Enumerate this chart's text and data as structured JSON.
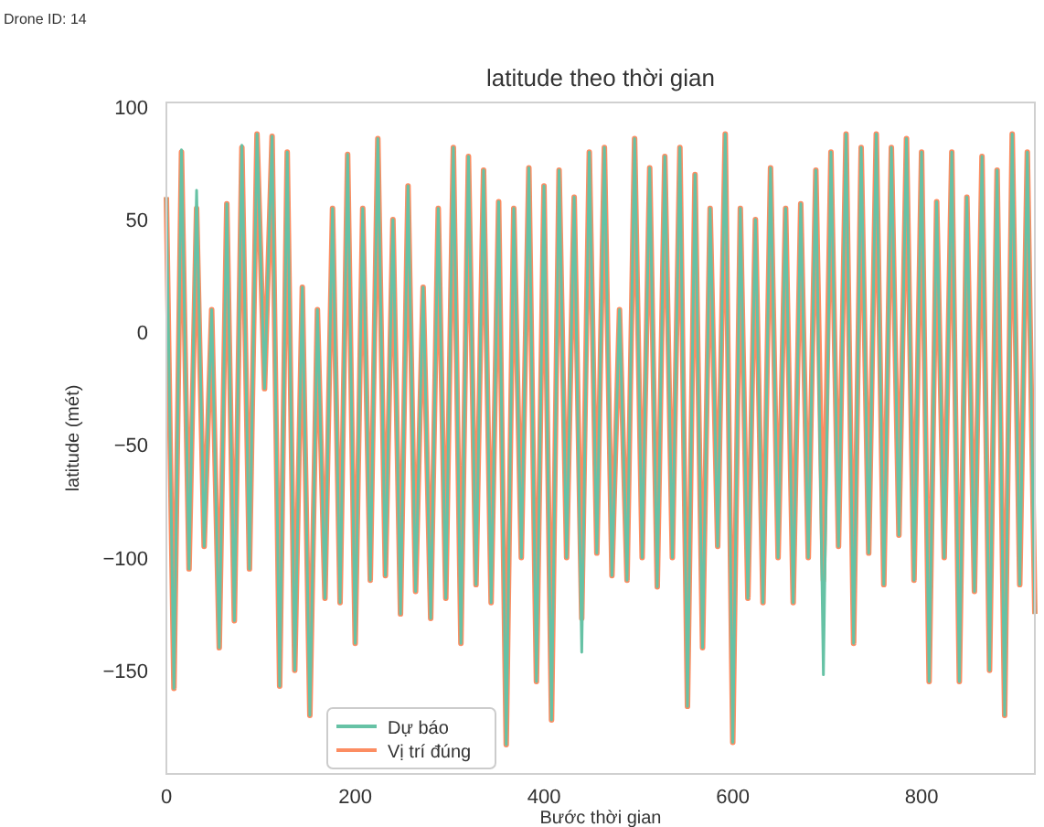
{
  "chart_data": {
    "type": "line",
    "title": "latitude theo thời gian",
    "xlabel": "Bước thời gian",
    "ylabel": "latitude (mét)",
    "annotations": [
      "Drone ID: 14"
    ],
    "x": [
      0,
      8,
      16,
      24,
      32,
      40,
      48,
      56,
      64,
      72,
      80,
      88,
      96,
      104,
      112,
      120,
      128,
      136,
      144,
      152,
      160,
      168,
      176,
      184,
      192,
      200,
      208,
      216,
      224,
      232,
      240,
      248,
      256,
      264,
      272,
      280,
      288,
      296,
      304,
      312,
      320,
      328,
      336,
      344,
      352,
      360,
      368,
      376,
      384,
      392,
      400,
      408,
      416,
      424,
      432,
      440,
      448,
      456,
      464,
      472,
      480,
      488,
      496,
      504,
      512,
      520,
      528,
      536,
      544,
      552,
      560,
      568,
      576,
      584,
      592,
      600,
      608,
      616,
      624,
      632,
      640,
      648,
      656,
      664,
      672,
      680,
      688,
      696,
      704,
      712,
      720,
      728,
      736,
      744,
      752,
      760,
      768,
      776,
      784,
      792,
      800,
      808,
      816,
      824,
      832,
      840,
      848,
      856,
      864,
      872,
      880,
      888,
      896,
      904,
      912,
      920
    ],
    "xlim": [
      0,
      920
    ],
    "xticks": [
      0,
      200,
      400,
      600,
      800
    ],
    "ylim": [
      -196,
      102
    ],
    "yticks": [
      {
        "value": -150,
        "label": "−150"
      },
      {
        "value": -100,
        "label": "−100"
      },
      {
        "value": -50,
        "label": "−50"
      },
      0,
      50,
      100
    ],
    "grid": false,
    "legend": "bottom",
    "line_style": "solid",
    "marker": "none",
    "series": [
      {
        "name": "Dự báo",
        "color": "#66c2a5",
        "values": [
          60,
          -158,
          81,
          -105,
          63,
          -95,
          10,
          -140,
          57,
          -128,
          83,
          -105,
          88,
          -25,
          87,
          -157,
          80,
          -150,
          20,
          -170,
          10,
          -118,
          55,
          -120,
          79,
          -138,
          55,
          -110,
          86,
          -108,
          50,
          -125,
          65,
          -115,
          20,
          -127,
          55,
          -118,
          82,
          -138,
          78,
          -112,
          72,
          -120,
          58,
          -183,
          55,
          -100,
          73,
          -155,
          65,
          -172,
          72,
          -100,
          60,
          -142,
          80,
          -98,
          82,
          -108,
          10,
          -110,
          86,
          -100,
          73,
          -113,
          78,
          -100,
          82,
          -166,
          70,
          -140,
          55,
          -95,
          88,
          -182,
          55,
          -118,
          50,
          -120,
          73,
          -100,
          55,
          -120,
          57,
          -100,
          72,
          -152,
          80,
          -95,
          88,
          -138,
          82,
          -98,
          88,
          -112,
          82,
          -90,
          86,
          -110,
          80,
          -155,
          58,
          -100,
          80,
          -155,
          60,
          -115,
          78,
          -150,
          72,
          -170,
          88,
          -112,
          80,
          -125
        ]
      },
      {
        "name": "Vị trí đúng",
        "color": "#fc8d62",
        "values": [
          60,
          -158,
          80,
          -105,
          55,
          -95,
          10,
          -140,
          57,
          -128,
          82,
          -105,
          88,
          -25,
          87,
          -157,
          80,
          -150,
          20,
          -170,
          10,
          -118,
          55,
          -120,
          79,
          -138,
          55,
          -110,
          86,
          -108,
          50,
          -125,
          65,
          -115,
          20,
          -127,
          55,
          -118,
          82,
          -138,
          78,
          -112,
          72,
          -120,
          58,
          -183,
          55,
          -100,
          73,
          -155,
          65,
          -172,
          72,
          -100,
          60,
          -127,
          80,
          -98,
          82,
          -108,
          10,
          -110,
          86,
          -100,
          73,
          -113,
          78,
          -100,
          82,
          -166,
          70,
          -140,
          55,
          -95,
          88,
          -182,
          55,
          -118,
          50,
          -120,
          73,
          -100,
          55,
          -120,
          57,
          -100,
          72,
          -110,
          80,
          -95,
          88,
          -138,
          82,
          -98,
          88,
          -112,
          82,
          -90,
          86,
          -110,
          80,
          -155,
          58,
          -100,
          80,
          -155,
          60,
          -115,
          78,
          -150,
          72,
          -170,
          88,
          -112,
          80,
          -125
        ]
      }
    ]
  }
}
